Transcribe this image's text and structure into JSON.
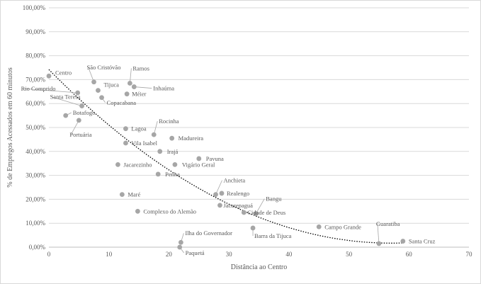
{
  "chart_data": {
    "type": "scatter",
    "xlabel": "Distância ao Centro",
    "ylabel": "% de Empregos Acessados em 60 minutos",
    "xlim": [
      0,
      70
    ],
    "ylim": [
      0,
      100
    ],
    "x_ticks": [
      "0",
      "10",
      "20",
      "30",
      "40",
      "50",
      "60",
      "70"
    ],
    "y_ticks": [
      "0,00%",
      "10,00%",
      "20,00%",
      "30,00%",
      "40,00%",
      "50,00%",
      "60,00%",
      "70,00%",
      "80,00%",
      "90,00%",
      "100,00%"
    ],
    "grid": "horizontal",
    "marker_color": "#a6a6a6",
    "trendline": {
      "style": "dotted",
      "color": "#000000",
      "order": 2
    },
    "points": [
      {
        "name": "Centro",
        "x": 0,
        "y": 71.5
      },
      {
        "name": "São Cristóvão",
        "x": 7.5,
        "y": 69
      },
      {
        "name": "Ramos",
        "x": 13.5,
        "y": 68.5
      },
      {
        "name": "Tijuca",
        "x": 8.2,
        "y": 65.5
      },
      {
        "name": "Inhaúma",
        "x": 14.2,
        "y": 67
      },
      {
        "name": "Rio Comprido",
        "x": 4.8,
        "y": 64.5
      },
      {
        "name": "Méier",
        "x": 13,
        "y": 64
      },
      {
        "name": "Copacabana",
        "x": 8.8,
        "y": 62.5
      },
      {
        "name": "Santa Teresa",
        "x": 5.5,
        "y": 59
      },
      {
        "name": "Botafogo",
        "x": 2.8,
        "y": 55
      },
      {
        "name": "Portuária",
        "x": 5,
        "y": 53
      },
      {
        "name": "Lagoa",
        "x": 12.8,
        "y": 49.5
      },
      {
        "name": "Rocinha",
        "x": 17.5,
        "y": 47
      },
      {
        "name": "Madureira",
        "x": 20.5,
        "y": 45.5
      },
      {
        "name": "Vila Isabel",
        "x": 12.8,
        "y": 43.5
      },
      {
        "name": "Irajá",
        "x": 18.5,
        "y": 40
      },
      {
        "name": "Pavuna",
        "x": 25,
        "y": 37
      },
      {
        "name": "Jacarezinho",
        "x": 11.5,
        "y": 34.5
      },
      {
        "name": "Vigário Geral",
        "x": 21,
        "y": 34.5
      },
      {
        "name": "Penha",
        "x": 18.2,
        "y": 30.5
      },
      {
        "name": "Anchieta",
        "x": 27.8,
        "y": 22
      },
      {
        "name": "Realengo",
        "x": 28.8,
        "y": 22.5
      },
      {
        "name": "Maré",
        "x": 12.2,
        "y": 22
      },
      {
        "name": "Jacarepaguá",
        "x": 28.5,
        "y": 17.5
      },
      {
        "name": "Bangu",
        "x": 34.5,
        "y": 14
      },
      {
        "name": "Cidade de Deus",
        "x": 32.5,
        "y": 14.5
      },
      {
        "name": "Complexo do Alemão",
        "x": 14.8,
        "y": 15
      },
      {
        "name": "Campo Grande",
        "x": 45,
        "y": 8.5
      },
      {
        "name": "Barra da Tijuca",
        "x": 34,
        "y": 8
      },
      {
        "name": "Guaratiba",
        "x": 55,
        "y": 1.5
      },
      {
        "name": "Santa Cruz",
        "x": 59,
        "y": 2.5
      },
      {
        "name": "Ilha do Governador",
        "x": 22,
        "y": 2
      },
      {
        "name": "Paquetá",
        "x": 21.8,
        "y": 0
      }
    ]
  }
}
